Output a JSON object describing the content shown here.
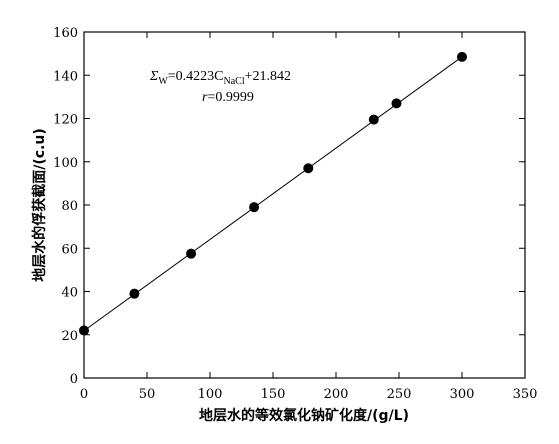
{
  "chart_data": {
    "type": "scatter",
    "xlabel": "地层水的等效氯化钠矿化度/(g/L)",
    "ylabel": "地层水的俘获截面/(c.u)",
    "xlim": [
      0,
      350
    ],
    "ylim": [
      0,
      160
    ],
    "xticks": [
      0,
      50,
      100,
      150,
      200,
      250,
      300,
      350
    ],
    "yticks": [
      0,
      20,
      40,
      60,
      80,
      100,
      120,
      140,
      160
    ],
    "series": [
      {
        "x": [
          0,
          40,
          85,
          135,
          178,
          230,
          248,
          300
        ],
        "y": [
          22,
          39,
          57.5,
          79,
          97,
          119.5,
          127,
          148.5
        ],
        "fit": {
          "slope": 0.4223,
          "intercept": 21.842,
          "x_range": [
            0,
            300
          ]
        }
      }
    ],
    "annotations": {
      "equation_prefix": "Σ",
      "equation_sub": "W",
      "equation_mid": "=0.4223C",
      "equation_sub2": "NaCl",
      "equation_suffix": "+21.842",
      "r_label": "r",
      "r_value": "=0.9999"
    },
    "grid": false,
    "legend": "none"
  }
}
